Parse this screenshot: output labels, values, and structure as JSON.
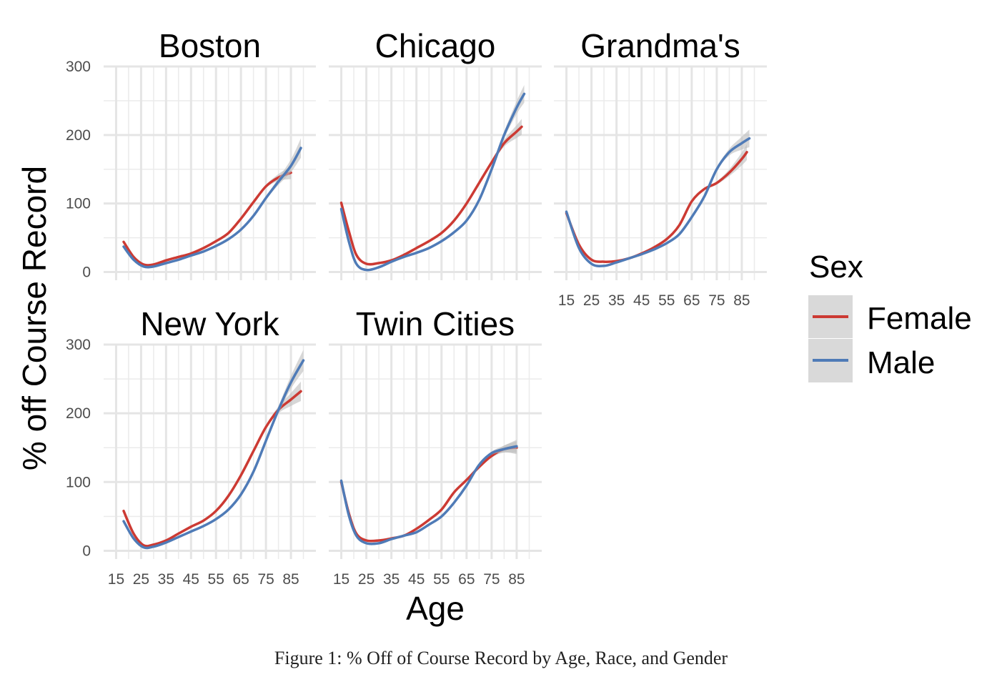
{
  "caption": "Figure 1: % Off of Course Record by Age, Race, and Gender",
  "chart_data": {
    "type": "line",
    "facet_by": "race",
    "ylabel": "% off Course Record",
    "xlabel": "Age",
    "xlim": [
      10,
      95
    ],
    "ylim": [
      -12,
      300
    ],
    "x_ticks": [
      15,
      25,
      35,
      45,
      55,
      65,
      75,
      85
    ],
    "y_ticks": [
      0,
      100,
      200,
      300
    ],
    "grid": true,
    "legend": {
      "title": "Sex",
      "position": "right",
      "entries": [
        {
          "name": "Female",
          "color": "#cc3a33"
        },
        {
          "name": "Male",
          "color": "#4f7bb7"
        }
      ]
    },
    "confidence_band_color": "#bdbdbd",
    "panels": [
      {
        "title": "Boston",
        "series": [
          {
            "name": "Female",
            "x": [
              18,
              22,
              26,
              30,
              35,
              40,
              45,
              50,
              55,
              60,
              65,
              70,
              75,
              80,
              85
            ],
            "y": [
              44,
              22,
              11,
              11,
              17,
              22,
              27,
              35,
              45,
              57,
              78,
              102,
              125,
              138,
              145
            ]
          },
          {
            "name": "Male",
            "x": [
              18,
              22,
              26,
              30,
              35,
              40,
              45,
              50,
              55,
              60,
              65,
              70,
              75,
              80,
              85,
              89
            ],
            "y": [
              37,
              18,
              8,
              8,
              13,
              18,
              24,
              30,
              38,
              48,
              62,
              82,
              108,
              132,
              155,
              181
            ]
          }
        ]
      },
      {
        "title": "Chicago",
        "series": [
          {
            "name": "Female",
            "x": [
              15,
              18,
              21,
              25,
              30,
              35,
              40,
              45,
              50,
              55,
              60,
              65,
              70,
              75,
              80,
              85,
              87
            ],
            "y": [
              101,
              60,
              25,
              12,
              13,
              17,
              25,
              35,
              45,
              57,
              75,
              100,
              130,
              160,
              188,
              205,
              212
            ]
          },
          {
            "name": "Male",
            "x": [
              15,
              18,
              21,
              25,
              30,
              35,
              40,
              45,
              50,
              55,
              60,
              65,
              70,
              75,
              80,
              85,
              88
            ],
            "y": [
              92,
              45,
              12,
              3,
              7,
              15,
              22,
              28,
              35,
              45,
              58,
              75,
              105,
              150,
              200,
              240,
              260
            ]
          }
        ]
      },
      {
        "title": "Grandma's",
        "series": [
          {
            "name": "Female",
            "x": [
              15,
              20,
              25,
              30,
              35,
              40,
              45,
              50,
              55,
              60,
              65,
              70,
              75,
              80,
              85,
              87
            ],
            "y": [
              86,
              40,
              18,
              15,
              16,
              20,
              27,
              36,
              48,
              68,
              103,
              121,
              130,
              145,
              165,
              175
            ]
          },
          {
            "name": "Male",
            "x": [
              15,
              20,
              25,
              30,
              35,
              40,
              45,
              50,
              55,
              60,
              65,
              70,
              75,
              80,
              85,
              88
            ],
            "y": [
              88,
              35,
              12,
              9,
              14,
              20,
              26,
              33,
              42,
              55,
              80,
              110,
              150,
              175,
              188,
              195
            ]
          }
        ]
      },
      {
        "title": "New York",
        "series": [
          {
            "name": "Female",
            "x": [
              18,
              22,
              26,
              30,
              35,
              40,
              45,
              50,
              55,
              60,
              65,
              70,
              75,
              80,
              85,
              89
            ],
            "y": [
              58,
              25,
              8,
              9,
              15,
              25,
              35,
              44,
              58,
              80,
              110,
              145,
              180,
              205,
              220,
              232
            ]
          },
          {
            "name": "Male",
            "x": [
              18,
              22,
              26,
              30,
              35,
              40,
              45,
              50,
              55,
              60,
              65,
              70,
              75,
              80,
              85,
              90
            ],
            "y": [
              43,
              18,
              5,
              6,
              12,
              20,
              28,
              36,
              46,
              60,
              82,
              115,
              160,
              205,
              245,
              277
            ]
          }
        ]
      },
      {
        "title": "Twin Cities",
        "series": [
          {
            "name": "Female",
            "x": [
              15,
              18,
              21,
              25,
              30,
              35,
              40,
              45,
              50,
              55,
              60,
              65,
              70,
              75,
              80,
              85
            ],
            "y": [
              100,
              55,
              25,
              15,
              15,
              18,
              22,
              32,
              45,
              60,
              85,
              103,
              122,
              138,
              148,
              150
            ]
          },
          {
            "name": "Male",
            "x": [
              15,
              18,
              21,
              25,
              30,
              35,
              40,
              45,
              50,
              55,
              60,
              65,
              70,
              75,
              80,
              85
            ],
            "y": [
              102,
              52,
              22,
              11,
              11,
              17,
              22,
              27,
              38,
              50,
              70,
              95,
              125,
              142,
              148,
              152
            ]
          }
        ]
      }
    ]
  }
}
